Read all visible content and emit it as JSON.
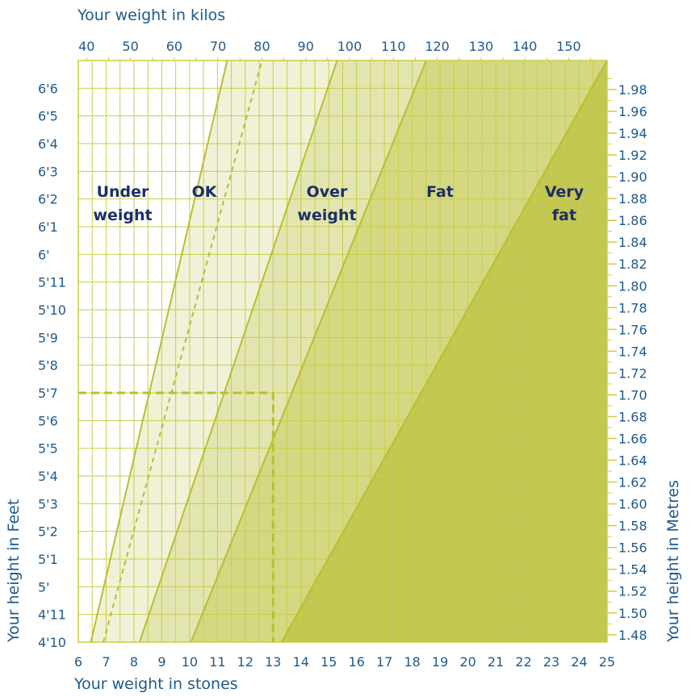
{
  "chart_data": {
    "type": "area",
    "title": "",
    "axes": {
      "x_top": {
        "label": "Your weight in kilos",
        "range": [
          38.1,
          158.8
        ],
        "ticks": [
          40,
          50,
          60,
          70,
          80,
          90,
          100,
          110,
          120,
          130,
          140,
          150
        ]
      },
      "x_bottom": {
        "label": "Your weight in stones",
        "range": [
          6,
          25
        ],
        "ticks": [
          6,
          7,
          8,
          9,
          10,
          11,
          12,
          13,
          14,
          15,
          16,
          17,
          18,
          19,
          20,
          21,
          22,
          23,
          24,
          25
        ]
      },
      "y_left": {
        "label": "Your height in Feet",
        "range_inches": [
          58,
          79
        ],
        "ticks": [
          {
            "inches": 58,
            "label": "4'10"
          },
          {
            "inches": 59,
            "label": "4'11"
          },
          {
            "inches": 60,
            "label": "5'"
          },
          {
            "inches": 61,
            "label": "5'1"
          },
          {
            "inches": 62,
            "label": "5'2"
          },
          {
            "inches": 63,
            "label": "5'3"
          },
          {
            "inches": 64,
            "label": "5'4"
          },
          {
            "inches": 65,
            "label": "5'5"
          },
          {
            "inches": 66,
            "label": "5'6"
          },
          {
            "inches": 67,
            "label": "5'7"
          },
          {
            "inches": 68,
            "label": "5'8"
          },
          {
            "inches": 69,
            "label": "5'9"
          },
          {
            "inches": 70,
            "label": "5'10"
          },
          {
            "inches": 71,
            "label": "5'11"
          },
          {
            "inches": 72,
            "label": "6'"
          },
          {
            "inches": 73,
            "label": "6'1"
          },
          {
            "inches": 74,
            "label": "6'2"
          },
          {
            "inches": 75,
            "label": "6'3"
          },
          {
            "inches": 76,
            "label": "6'4"
          },
          {
            "inches": 77,
            "label": "6'5"
          },
          {
            "inches": 78,
            "label": "6'6"
          }
        ]
      },
      "y_right": {
        "label": "Your height in Metres",
        "ticks": [
          "1.48",
          "1.50",
          "1.52",
          "1.54",
          "1.56",
          "1.58",
          "1.60",
          "1.62",
          "1.64",
          "1.66",
          "1.68",
          "1.70",
          "1.72",
          "1.74",
          "1.76",
          "1.78",
          "1.80",
          "1.82",
          "1.84",
          "1.86",
          "1.88",
          "1.90",
          "1.92",
          "1.94",
          "1.96",
          "1.98"
        ]
      }
    },
    "boundaries": [
      {
        "style": "solid",
        "points": [
          {
            "stones": 6.45,
            "inches": 58
          },
          {
            "stones": 11.35,
            "inches": 79
          }
        ]
      },
      {
        "style": "dashed",
        "points": [
          {
            "stones": 6.9,
            "inches": 58
          },
          {
            "stones": 12.6,
            "inches": 79
          }
        ]
      },
      {
        "style": "solid",
        "points": [
          {
            "stones": 8.2,
            "inches": 58
          },
          {
            "stones": 15.3,
            "inches": 79
          }
        ]
      },
      {
        "style": "solid",
        "points": [
          {
            "stones": 10.05,
            "inches": 58
          },
          {
            "stones": 18.5,
            "inches": 79
          }
        ]
      },
      {
        "style": "solid",
        "points": [
          {
            "stones": 13.3,
            "inches": 58
          },
          {
            "stones": 25.0,
            "inches": 79
          }
        ]
      }
    ],
    "zones": [
      {
        "name": "Under weight",
        "lines": [
          "Under",
          "weight"
        ],
        "color": "#ffffff"
      },
      {
        "name": "OK",
        "lines": [
          "OK"
        ],
        "color": "#f1f1d8"
      },
      {
        "name": "Over weight",
        "lines": [
          "Over",
          "weight"
        ],
        "color": "#e3e5b1"
      },
      {
        "name": "Fat",
        "lines": [
          "Fat"
        ],
        "color": "#d4d882"
      },
      {
        "name": "Very fat",
        "lines": [
          "Very",
          "fat"
        ],
        "color": "#c2c752"
      }
    ],
    "example": {
      "stones": 13,
      "inches": 67,
      "style": "dashed"
    },
    "colors": {
      "grid": "#c9ce45",
      "boundary": "#b8bf30",
      "text": "#1f5a8a",
      "zone_label": "#1c2f66"
    },
    "grid": true
  }
}
